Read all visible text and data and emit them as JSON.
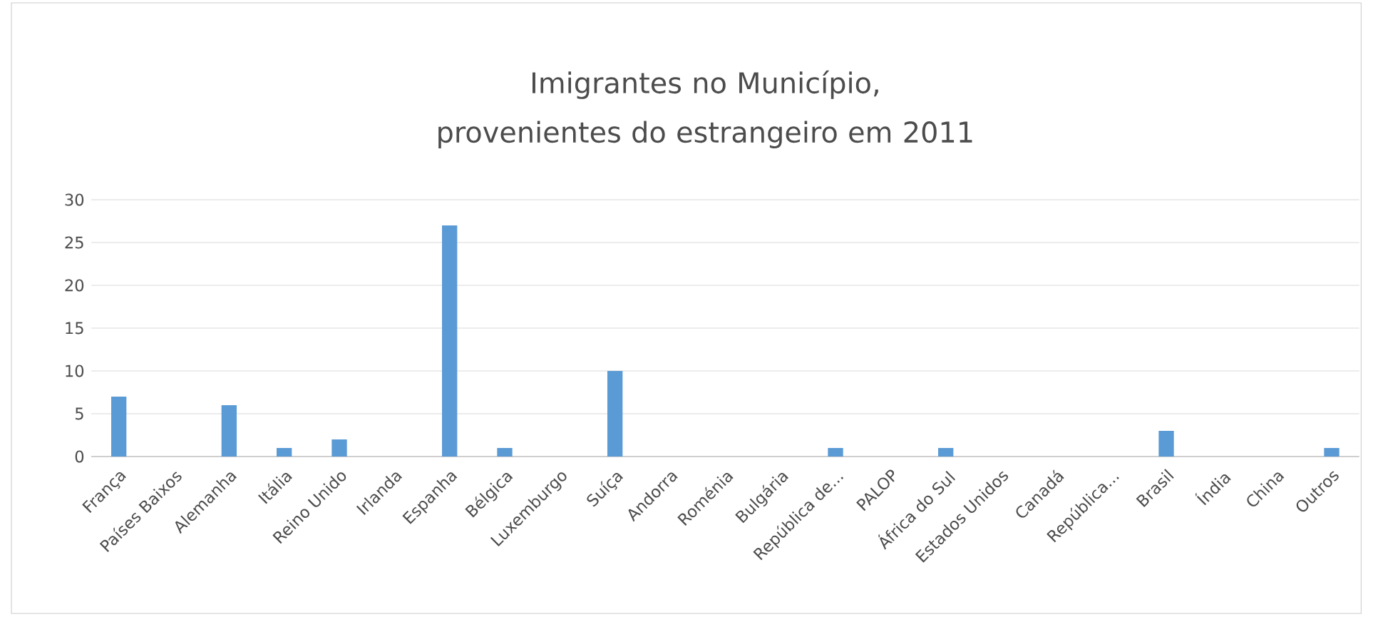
{
  "chart_data": {
    "type": "bar",
    "title": "Imigrantes no Município, provenientes do estrangeiro em 2011",
    "categories": [
      "França",
      "Países Baixos",
      "Alemanha",
      "Itália",
      "Reino Unido",
      "Irlanda",
      "Espanha",
      "Bélgica",
      "Luxemburgo",
      "Suíça",
      "Andorra",
      "Roménia",
      "Bulgária",
      "República de...",
      "PALOP",
      "África do Sul",
      "Estados Unidos",
      "Canadá",
      "República...",
      "Brasil",
      "Índia",
      "China",
      "Outros"
    ],
    "values": [
      7,
      0,
      6,
      1,
      2,
      0,
      27,
      1,
      0,
      10,
      0,
      0,
      0,
      1,
      0,
      1,
      0,
      0,
      0,
      3,
      0,
      0,
      1
    ],
    "color": "#5b9bd5",
    "ylim": [
      0,
      30
    ],
    "yticks": [
      0,
      5,
      10,
      15,
      20,
      25,
      30
    ],
    "grid": "y"
  }
}
